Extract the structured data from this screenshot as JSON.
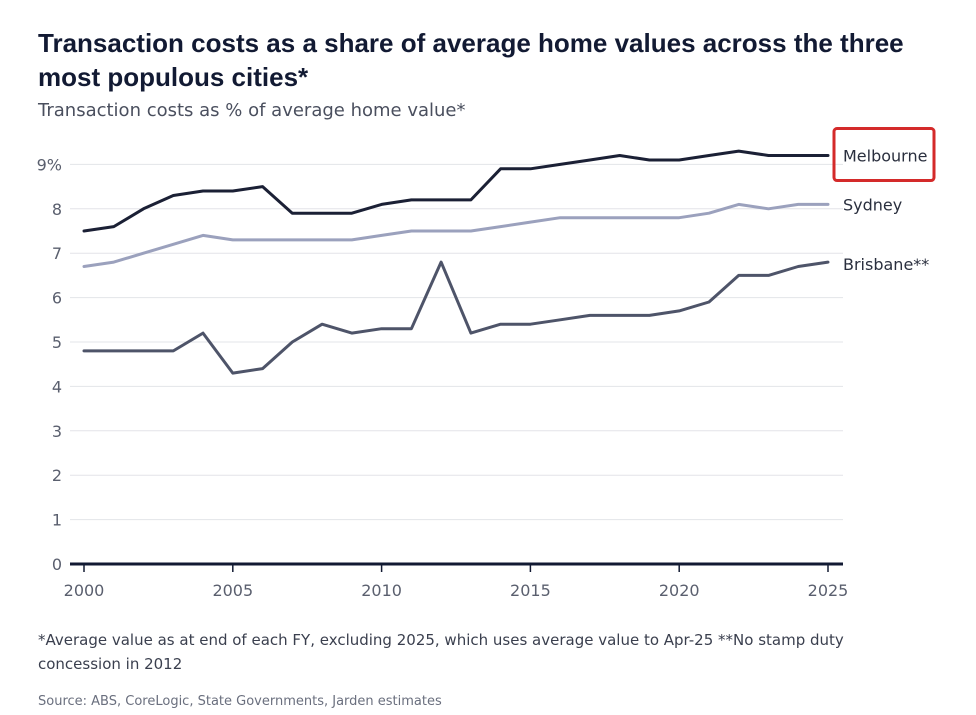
{
  "page": {
    "title": "Transaction costs as a share of average home values across the three most populous cities*",
    "subtitle": "Transaction costs as % of average home value*",
    "note": "*Average value as at end of each FY, excluding 2025, which uses average value to Apr-25 **No stamp duty concession in 2012",
    "source": "Source: ABS, CoreLogic, State Governments, Jarden estimates"
  },
  "chart_data": {
    "type": "line",
    "title": "Transaction costs as a share of average home values across the three most populous cities*",
    "ylabel": "Transaction costs as % of average home value*",
    "xlabel": "",
    "xlim": [
      2000,
      2025
    ],
    "ylim": [
      0,
      10
    ],
    "grid": true,
    "x_ticks": [
      "2000",
      "2005",
      "2010",
      "2015",
      "2020",
      "2025"
    ],
    "y_ticks": [
      "0",
      "1",
      "2",
      "3",
      "4",
      "5",
      "6",
      "7",
      "8",
      "9%"
    ],
    "x": [
      2000,
      2001,
      2002,
      2003,
      2004,
      2005,
      2006,
      2007,
      2008,
      2009,
      2010,
      2011,
      2012,
      2013,
      2014,
      2015,
      2016,
      2017,
      2018,
      2019,
      2020,
      2021,
      2022,
      2023,
      2024,
      2025
    ],
    "series": [
      {
        "name": "Melbourne",
        "color": "#1b2035",
        "highlighted": true,
        "highlight_color": "#d42a2a",
        "values": [
          7.5,
          7.6,
          8.0,
          8.3,
          8.4,
          8.4,
          8.5,
          7.9,
          7.9,
          7.9,
          8.1,
          8.2,
          8.2,
          8.2,
          8.9,
          8.9,
          9.0,
          9.1,
          9.2,
          9.1,
          9.1,
          9.2,
          9.3,
          9.2,
          9.2,
          9.2
        ]
      },
      {
        "name": "Sydney",
        "color": "#9ba1bd",
        "values": [
          6.7,
          6.8,
          7.0,
          7.2,
          7.4,
          7.3,
          7.3,
          7.3,
          7.3,
          7.3,
          7.4,
          7.5,
          7.5,
          7.5,
          7.6,
          7.7,
          7.8,
          7.8,
          7.8,
          7.8,
          7.8,
          7.9,
          8.1,
          8.0,
          8.1,
          8.1
        ]
      },
      {
        "name": "Brisbane**",
        "color": "#4e5469",
        "values": [
          4.8,
          4.8,
          4.8,
          4.8,
          5.2,
          4.3,
          4.4,
          5.0,
          5.4,
          5.2,
          5.3,
          5.3,
          6.8,
          5.2,
          5.4,
          5.4,
          5.5,
          5.6,
          5.6,
          5.6,
          5.7,
          5.9,
          6.5,
          6.5,
          6.7,
          6.8
        ]
      }
    ]
  }
}
